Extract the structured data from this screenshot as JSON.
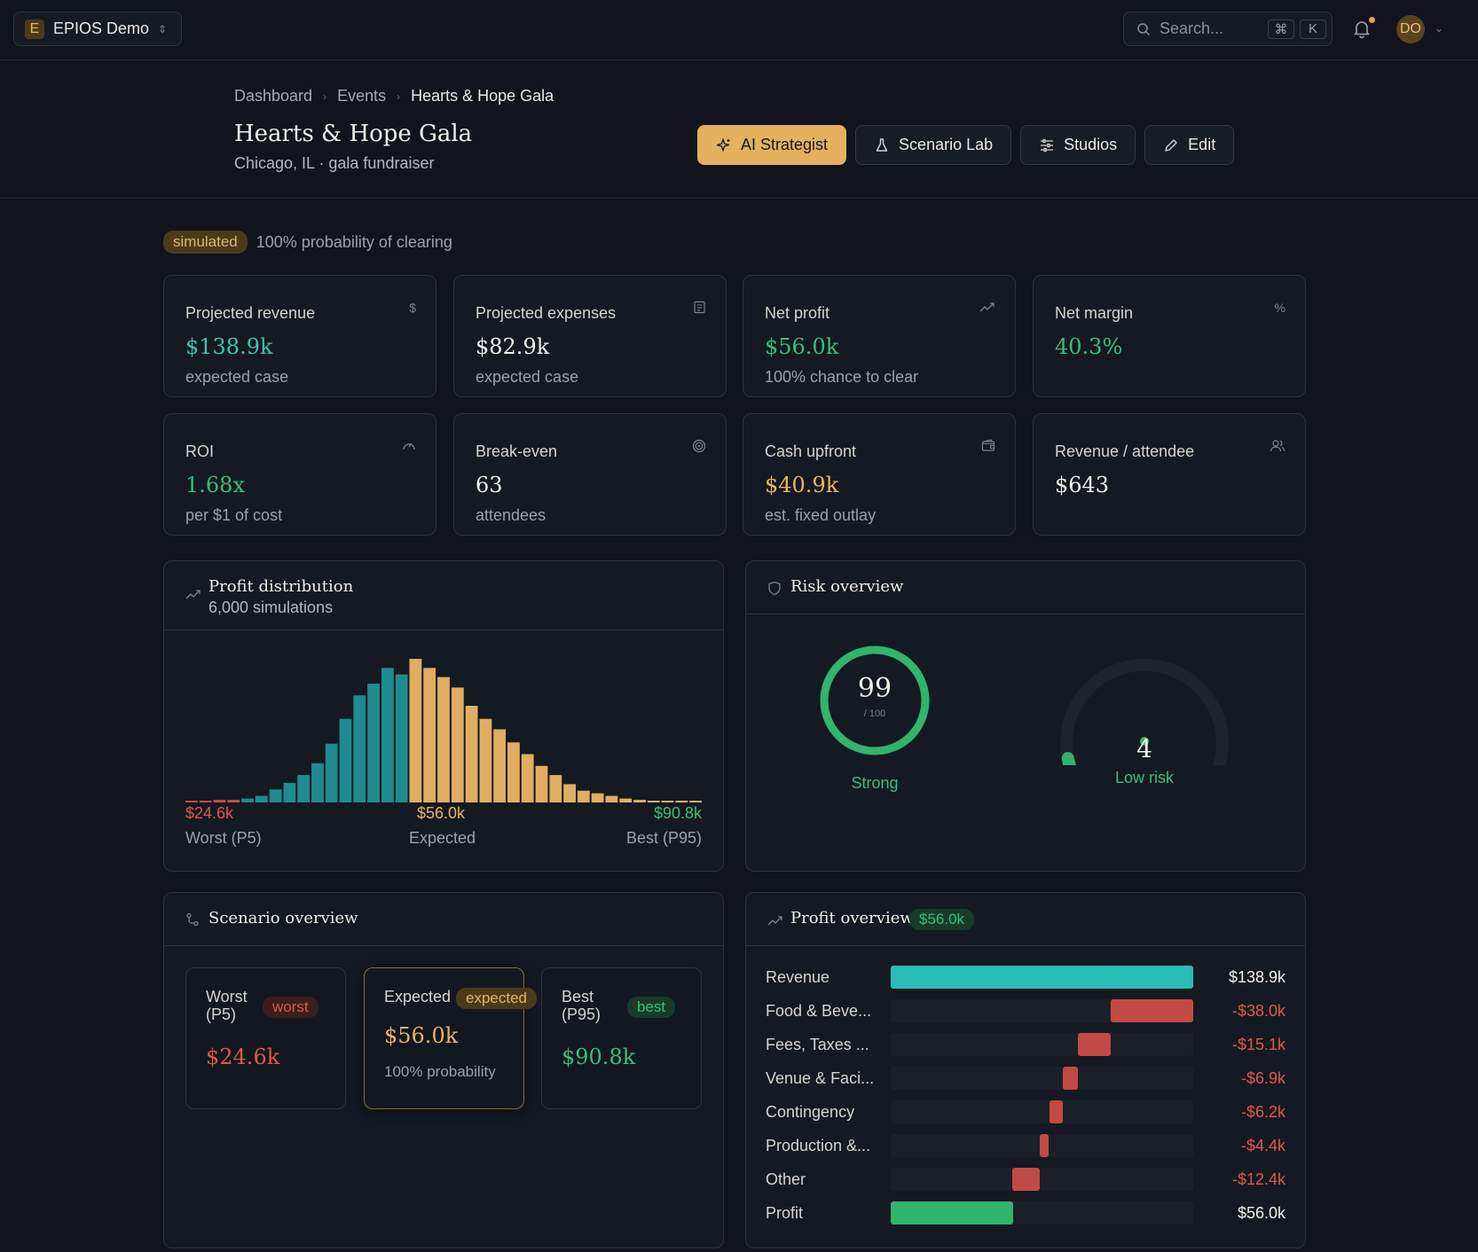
{
  "topbar": {
    "workspace_initial": "E",
    "workspace_name": "EPIOS Demo",
    "search_placeholder": "Search...",
    "shortcut_key1": "⌘",
    "shortcut_key2": "K",
    "avatar_initials": "DO"
  },
  "breadcrumb": [
    "Dashboard",
    "Events",
    "Hearts & Hope Gala"
  ],
  "event": {
    "title": "Hearts & Hope Gala",
    "subtitle": "Chicago, IL · gala fundraiser"
  },
  "actions": {
    "ai_strategist": "AI Strategist",
    "scenario_lab": "Scenario Lab",
    "studios": "Studios",
    "edit": "Edit"
  },
  "status": {
    "badge": "simulated",
    "text": "100% probability of clearing"
  },
  "kpis": [
    {
      "label": "Projected revenue",
      "value": "$138.9k",
      "note": "expected case",
      "icon": "dollar-icon",
      "color": "#3cc2b4"
    },
    {
      "label": "Projected expenses",
      "value": "$82.9k",
      "note": "expected case",
      "icon": "receipt-icon",
      "color": "#f2efe8"
    },
    {
      "label": "Net profit",
      "value": "$56.0k",
      "note": "100% chance to clear",
      "icon": "trending-up-icon",
      "color": "#37c077"
    },
    {
      "label": "Net margin",
      "value": "40.3%",
      "note": "",
      "icon": "percent-icon",
      "color": "#37c077"
    },
    {
      "label": "ROI",
      "value": "1.68x",
      "note": "per $1 of cost",
      "icon": "gauge-icon",
      "color": "#37c077"
    },
    {
      "label": "Break-even",
      "value": "63",
      "note": "attendees",
      "icon": "target-icon",
      "color": "#f2efe8"
    },
    {
      "label": "Cash upfront",
      "value": "$40.9k",
      "note": "est. fixed outlay",
      "icon": "wallet-icon",
      "color": "#e6b566"
    },
    {
      "label": "Revenue / attendee",
      "value": "$643",
      "note": "",
      "icon": "users-icon",
      "color": "#f2efe8"
    }
  ],
  "distribution": {
    "title": "Profit distribution",
    "subtitle": "6,000 simulations",
    "worst_value": "$24.6k",
    "worst_label": "Worst (P5)",
    "expected_value": "$56.0k",
    "expected_label": "Expected",
    "best_value": "$90.8k",
    "best_label": "Best (P95)"
  },
  "chart_data": {
    "type": "bar",
    "values": [
      1,
      1,
      2,
      2,
      3,
      5,
      10,
      15,
      21,
      30,
      45,
      64,
      82,
      91,
      103,
      98,
      110,
      103,
      96,
      88,
      74,
      64,
      56,
      46,
      37,
      28,
      21,
      14,
      9,
      7,
      5,
      3,
      2,
      1,
      1,
      1,
      1
    ],
    "colors": {
      "tail": "#c84b45",
      "low": "#1f8b8e",
      "high": "#e0ad62"
    },
    "tail_count": 4,
    "split_index": 16,
    "grid": false
  },
  "risk": {
    "title": "Risk overview",
    "score": "99",
    "score_max": "/ 100",
    "score_fraction": 0.99,
    "score_label": "Strong",
    "risk_value": "4",
    "risk_fraction": 0.04,
    "risk_label": "Low risk"
  },
  "scenarios": {
    "title": "Scenario overview",
    "items": [
      {
        "name": "Worst (P5)",
        "badge": "worst",
        "value": "$24.6k",
        "prob": ""
      },
      {
        "name": "Expected",
        "badge": "expected",
        "value": "$56.0k",
        "prob": "100% probability"
      },
      {
        "name": "Best (P95)",
        "badge": "best",
        "value": "$90.8k",
        "prob": ""
      }
    ]
  },
  "profit_overview": {
    "title": "Profit overview",
    "badge": "$56.0k",
    "rows": [
      {
        "label": "Revenue",
        "value": "$138.9k",
        "amount": 138.9,
        "kind": "revenue"
      },
      {
        "label": "Food & Beve...",
        "value": "-$38.0k",
        "amount": -38.0,
        "kind": "expense"
      },
      {
        "label": "Fees, Taxes ...",
        "value": "-$15.1k",
        "amount": -15.1,
        "kind": "expense"
      },
      {
        "label": "Venue & Faci...",
        "value": "-$6.9k",
        "amount": -6.9,
        "kind": "expense"
      },
      {
        "label": "Contingency",
        "value": "-$6.2k",
        "amount": -6.2,
        "kind": "expense"
      },
      {
        "label": "Production &...",
        "value": "-$4.4k",
        "amount": -4.4,
        "kind": "expense"
      },
      {
        "label": "Other",
        "value": "-$12.4k",
        "amount": -12.4,
        "kind": "expense"
      },
      {
        "label": "Profit",
        "value": "$56.0k",
        "amount": 56.0,
        "kind": "profit"
      }
    ]
  }
}
